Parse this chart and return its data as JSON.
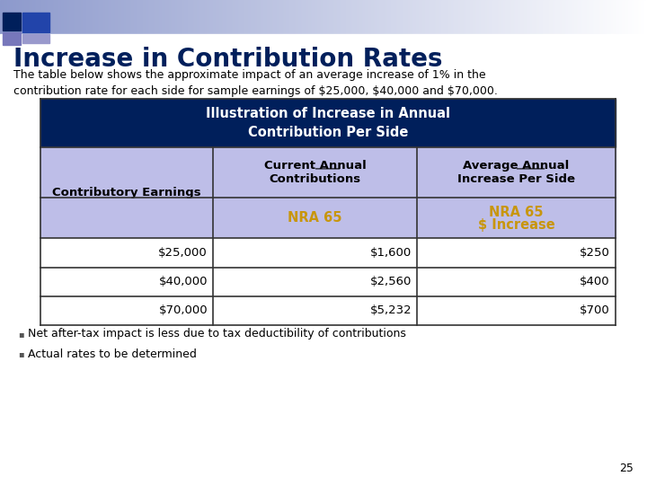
{
  "title": "Increase in Contribution Rates",
  "subtitle": "The table below shows the approximate impact of an average increase of 1% in the\ncontribution rate for each side for sample earnings of $25,000, $40,000 and $70,000.",
  "table_header_text": "Illustration of Increase in Annual\nContribution Per Side",
  "col1_header": "Contributory Earnings",
  "col2_header_line1": "Current ",
  "col2_header_underline": "Annual",
  "col2_header_line2": "Contributions",
  "col3_header_line1": "Average ",
  "col3_header_underline": "Annual",
  "col3_header_line2": "Increase Per Side",
  "col2_subheader": "NRA 65",
  "col3_subheader_line1": "NRA 65",
  "col3_subheader_line2": "$ Increase",
  "rows": [
    [
      "$25,000",
      "$1,600",
      "$250"
    ],
    [
      "$40,000",
      "$2,560",
      "$400"
    ],
    [
      "$70,000",
      "$5,232",
      "$700"
    ]
  ],
  "bullets": [
    "Net after-tax impact is less due to tax deductibility of contributions",
    "Actual rates to be determined"
  ],
  "page_number": "25",
  "bg_color": "#FFFFFF",
  "header_bar_color": "#001F5B",
  "header_text_color": "#FFFFFF",
  "col_header_bg_color": "#BEBEE8",
  "col_header_text_color": "#000000",
  "subheader_text_color": "#C8960C",
  "data_row_bg_color": "#FFFFFF",
  "table_border_color": "#333333",
  "title_color": "#001F5B",
  "subtitle_color": "#000000",
  "bullet_color": "#000000",
  "page_num_color": "#000000"
}
